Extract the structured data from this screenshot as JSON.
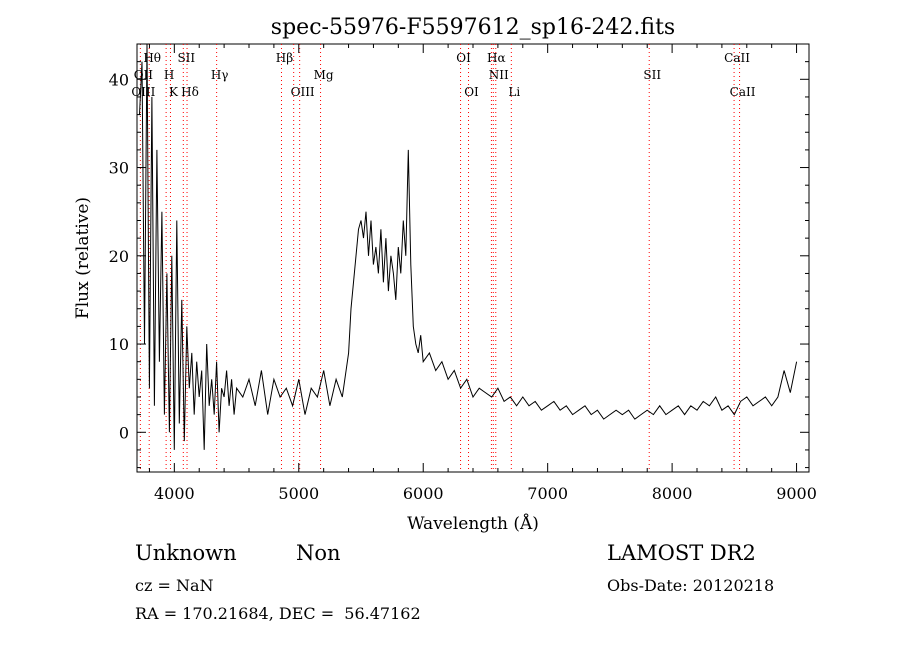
{
  "chart_data": {
    "type": "line",
    "title": "spec-55976-F5597612_sp16-242.fits",
    "xlabel": "Wavelength (Å)",
    "ylabel": "Flux (relative)",
    "xlim": [
      3700,
      9100
    ],
    "ylim": [
      -4.5,
      44
    ],
    "x_ticks": [
      4000,
      5000,
      6000,
      7000,
      8000,
      9000
    ],
    "y_ticks": [
      0,
      10,
      20,
      30,
      40
    ],
    "grid": false,
    "line_color": "#000000",
    "marker_color": "#ff0000",
    "series": [
      {
        "x": [
          3720,
          3740,
          3760,
          3780,
          3800,
          3820,
          3840,
          3860,
          3880,
          3900,
          3920,
          3940,
          3960,
          3980,
          4000,
          4020,
          4040,
          4060,
          4080,
          4100,
          4120,
          4140,
          4160,
          4180,
          4200,
          4220,
          4240,
          4260,
          4280,
          4300,
          4320,
          4340,
          4360,
          4380,
          4400,
          4420,
          4440,
          4460,
          4480,
          4500,
          4550,
          4600,
          4650,
          4700,
          4750,
          4800,
          4850,
          4900,
          4950,
          5000,
          5050,
          5100,
          5150,
          5200,
          5250,
          5300,
          5350,
          5400,
          5420,
          5440,
          5460,
          5480,
          5500,
          5520,
          5540,
          5560,
          5580,
          5600,
          5620,
          5640,
          5660,
          5680,
          5700,
          5720,
          5740,
          5760,
          5780,
          5800,
          5820,
          5840,
          5860,
          5880,
          5900,
          5920,
          5940,
          5960,
          5980,
          6000,
          6050,
          6100,
          6150,
          6200,
          6250,
          6300,
          6350,
          6400,
          6450,
          6500,
          6550,
          6600,
          6650,
          6700,
          6750,
          6800,
          6850,
          6900,
          6950,
          7000,
          7050,
          7100,
          7150,
          7200,
          7250,
          7300,
          7350,
          7400,
          7450,
          7500,
          7550,
          7600,
          7650,
          7700,
          7750,
          7800,
          7850,
          7900,
          7950,
          8000,
          8050,
          8100,
          8150,
          8200,
          8250,
          8300,
          8350,
          8400,
          8450,
          8500,
          8550,
          8600,
          8650,
          8700,
          8750,
          8800,
          8850,
          8900,
          8950,
          9000
        ],
        "y": [
          36,
          42,
          10,
          44,
          5,
          38,
          3,
          32,
          8,
          25,
          2,
          18,
          0,
          20,
          -2,
          24,
          1,
          15,
          -1,
          12,
          5,
          9,
          2,
          8,
          4,
          7,
          -2,
          10,
          3,
          6,
          2,
          8,
          0,
          5,
          4,
          7,
          3,
          6,
          2,
          5,
          4,
          6,
          3,
          7,
          2,
          6,
          4,
          5,
          3,
          6,
          2,
          5,
          4,
          7,
          3,
          6,
          4,
          9,
          14,
          17,
          20,
          23,
          24,
          22,
          25,
          20,
          24,
          19,
          21,
          18,
          23,
          17,
          22,
          16,
          20,
          18,
          15,
          21,
          18,
          24,
          20,
          32,
          19,
          12,
          10,
          9,
          11,
          8,
          9,
          7,
          8,
          6,
          7,
          5,
          6,
          4,
          5,
          4.5,
          4,
          5,
          3.5,
          4,
          3,
          4,
          3,
          3.5,
          2.5,
          3,
          3.5,
          2.5,
          3,
          2,
          2.5,
          3,
          2,
          2.5,
          1.5,
          2,
          2.5,
          2,
          2.5,
          1.5,
          2,
          2.5,
          2,
          3,
          2,
          2.5,
          3,
          2,
          3,
          2.5,
          3.5,
          3,
          4,
          2.5,
          3,
          2,
          3.5,
          4,
          3,
          3.5,
          4,
          3,
          4,
          7,
          4.5,
          8
        ]
      }
    ],
    "lines_red": [
      {
        "label": "OII",
        "x": 3727
      },
      {
        "label": "Hθ",
        "x": 3798
      },
      {
        "label": "H",
        "x": 3934
      },
      {
        "label": "K",
        "x": 3969
      },
      {
        "label": "SII",
        "x": 4072
      },
      {
        "label": "Hδ",
        "x": 4102
      },
      {
        "label": "Hγ",
        "x": 4340
      },
      {
        "label": "Hβ",
        "x": 4861
      },
      {
        "label": "OIII",
        "x": 4959
      },
      {
        "label": "OIII",
        "x": 5007
      },
      {
        "label": "Mg",
        "x": 5175
      },
      {
        "label": "OI",
        "x": 6300
      },
      {
        "label": "OI",
        "x": 6364
      },
      {
        "label": "NII",
        "x": 6548
      },
      {
        "label": "Hα",
        "x": 6563
      },
      {
        "label": "NII",
        "x": 6583
      },
      {
        "label": "Li",
        "x": 6708
      },
      {
        "label": "SII",
        "x": 7816
      },
      {
        "label": "CaII",
        "x": 8498
      },
      {
        "label": "CaII",
        "x": 8542
      }
    ],
    "line_labels": [
      {
        "text": "Hθ",
        "row": 1,
        "x": 3798
      },
      {
        "text": "OII",
        "row": 2,
        "x": 3727
      },
      {
        "text": "OIII",
        "row": 3,
        "x": 3727
      },
      {
        "text": "SII",
        "row": 1,
        "x": 4072
      },
      {
        "text": "H",
        "row": 2,
        "x": 3934
      },
      {
        "text": "K",
        "row": 3,
        "x": 3969
      },
      {
        "text": "Hδ",
        "row": 3,
        "x": 4102
      },
      {
        "text": "Hγ",
        "row": 2,
        "x": 4340
      },
      {
        "text": "Hβ",
        "row": 1,
        "x": 4861
      },
      {
        "text": "Mg",
        "row": 2,
        "x": 5175
      },
      {
        "text": "OIII",
        "row": 3,
        "x": 5007
      },
      {
        "text": "OI",
        "row": 1,
        "x": 6300
      },
      {
        "text": "Hα",
        "row": 1,
        "x": 6563
      },
      {
        "text": "NII",
        "row": 2,
        "x": 6583
      },
      {
        "text": "OI",
        "row": 3,
        "x": 6364
      },
      {
        "text": "Li",
        "row": 3,
        "x": 6708
      },
      {
        "text": "SII",
        "row": 2,
        "x": 7816
      },
      {
        "text": "CaII",
        "row": 1,
        "x": 8498
      },
      {
        "text": "CaII",
        "row": 3,
        "x": 8542
      }
    ]
  },
  "footer": {
    "class_label": "Unknown",
    "subclass_label": "Non",
    "survey": "LAMOST DR2",
    "cz": "cz = NaN",
    "obs_date": "Obs-Date: 20120218",
    "coords": "RA = 170.21684, DEC =  56.47162"
  }
}
